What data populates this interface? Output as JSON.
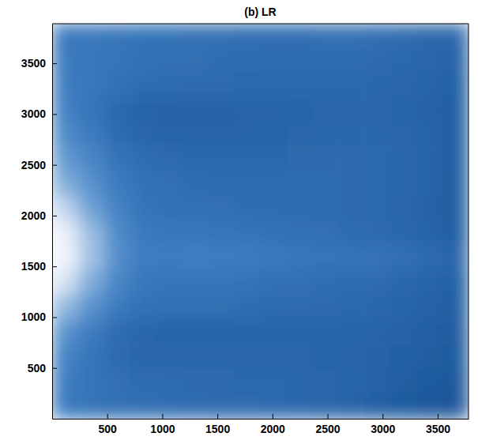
{
  "chart_data": {
    "type": "heatmap",
    "title": "(b) LR",
    "xlim": [
      0,
      3780
    ],
    "ylim": [
      0,
      3890
    ],
    "xticks": [
      500,
      1000,
      1500,
      2000,
      2500,
      3000,
      3500
    ],
    "yticks": [
      500,
      1000,
      1500,
      2000,
      2500,
      3000,
      3500
    ],
    "z": [
      [
        42,
        42,
        40,
        38,
        38,
        36,
        36,
        35,
        35,
        35,
        36,
        36,
        35,
        33,
        30,
        30
      ],
      [
        44,
        42,
        40,
        38,
        37,
        36,
        35,
        35,
        34,
        34,
        34,
        34,
        33,
        32,
        30,
        28
      ],
      [
        46,
        42,
        38,
        35,
        34,
        33,
        33,
        32,
        32,
        32,
        32,
        32,
        31,
        30,
        28,
        26
      ],
      [
        48,
        40,
        32,
        28,
        27,
        27,
        27,
        28,
        28,
        29,
        30,
        30,
        30,
        29,
        27,
        25
      ],
      [
        55,
        45,
        34,
        30,
        28,
        28,
        28,
        28,
        29,
        30,
        31,
        31,
        31,
        30,
        28,
        25
      ],
      [
        65,
        52,
        40,
        35,
        33,
        32,
        32,
        32,
        32,
        33,
        33,
        33,
        32,
        31,
        28,
        25
      ],
      [
        75,
        60,
        45,
        38,
        36,
        35,
        34,
        34,
        34,
        34,
        34,
        33,
        32,
        31,
        28,
        24
      ],
      [
        88,
        70,
        50,
        40,
        38,
        37,
        36,
        35,
        35,
        35,
        34,
        33,
        32,
        30,
        27,
        24
      ],
      [
        97,
        80,
        55,
        44,
        42,
        42,
        41,
        40,
        38,
        37,
        36,
        34,
        33,
        31,
        28,
        25
      ],
      [
        98,
        82,
        57,
        46,
        46,
        47,
        46,
        45,
        44,
        42,
        41,
        40,
        39,
        37,
        34,
        30
      ],
      [
        92,
        74,
        52,
        42,
        40,
        40,
        40,
        39,
        37,
        36,
        35,
        34,
        33,
        31,
        28,
        26
      ],
      [
        78,
        60,
        44,
        38,
        37,
        37,
        36,
        35,
        34,
        33,
        33,
        32,
        31,
        29,
        27,
        25
      ],
      [
        60,
        45,
        34,
        30,
        29,
        29,
        29,
        29,
        29,
        29,
        29,
        29,
        28,
        27,
        25,
        23
      ],
      [
        50,
        40,
        33,
        30,
        30,
        30,
        30,
        30,
        30,
        30,
        29,
        28,
        27,
        26,
        24,
        22
      ],
      [
        46,
        40,
        36,
        34,
        34,
        33,
        33,
        32,
        32,
        31,
        30,
        29,
        27,
        25,
        22,
        20
      ],
      [
        44,
        40,
        37,
        36,
        35,
        34,
        33,
        33,
        32,
        31,
        30,
        28,
        25,
        22,
        19,
        18
      ]
    ]
  }
}
